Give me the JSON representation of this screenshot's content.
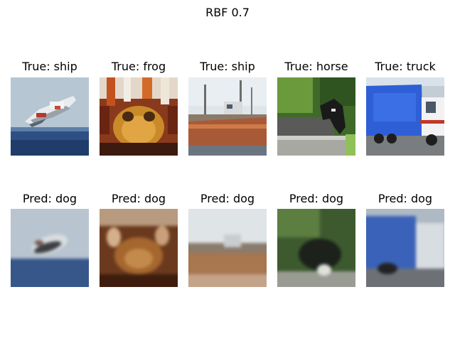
{
  "figure": {
    "title": "RBF 0.7"
  },
  "row_true": [
    {
      "label": "True: ship",
      "image": "ship-flying-boat"
    },
    {
      "label": "True: frog",
      "image": "frog"
    },
    {
      "label": "True: ship",
      "image": "ship-fishing-boat"
    },
    {
      "label": "True: horse",
      "image": "horse"
    },
    {
      "label": "True: truck",
      "image": "truck"
    }
  ],
  "row_pred": [
    {
      "label": "Pred: dog",
      "image": "reconstruction-ship"
    },
    {
      "label": "Pred: dog",
      "image": "reconstruction-frog"
    },
    {
      "label": "Pred: dog",
      "image": "reconstruction-ship"
    },
    {
      "label": "Pred: dog",
      "image": "reconstruction-horse"
    },
    {
      "label": "Pred: dog",
      "image": "reconstruction-truck"
    }
  ]
}
